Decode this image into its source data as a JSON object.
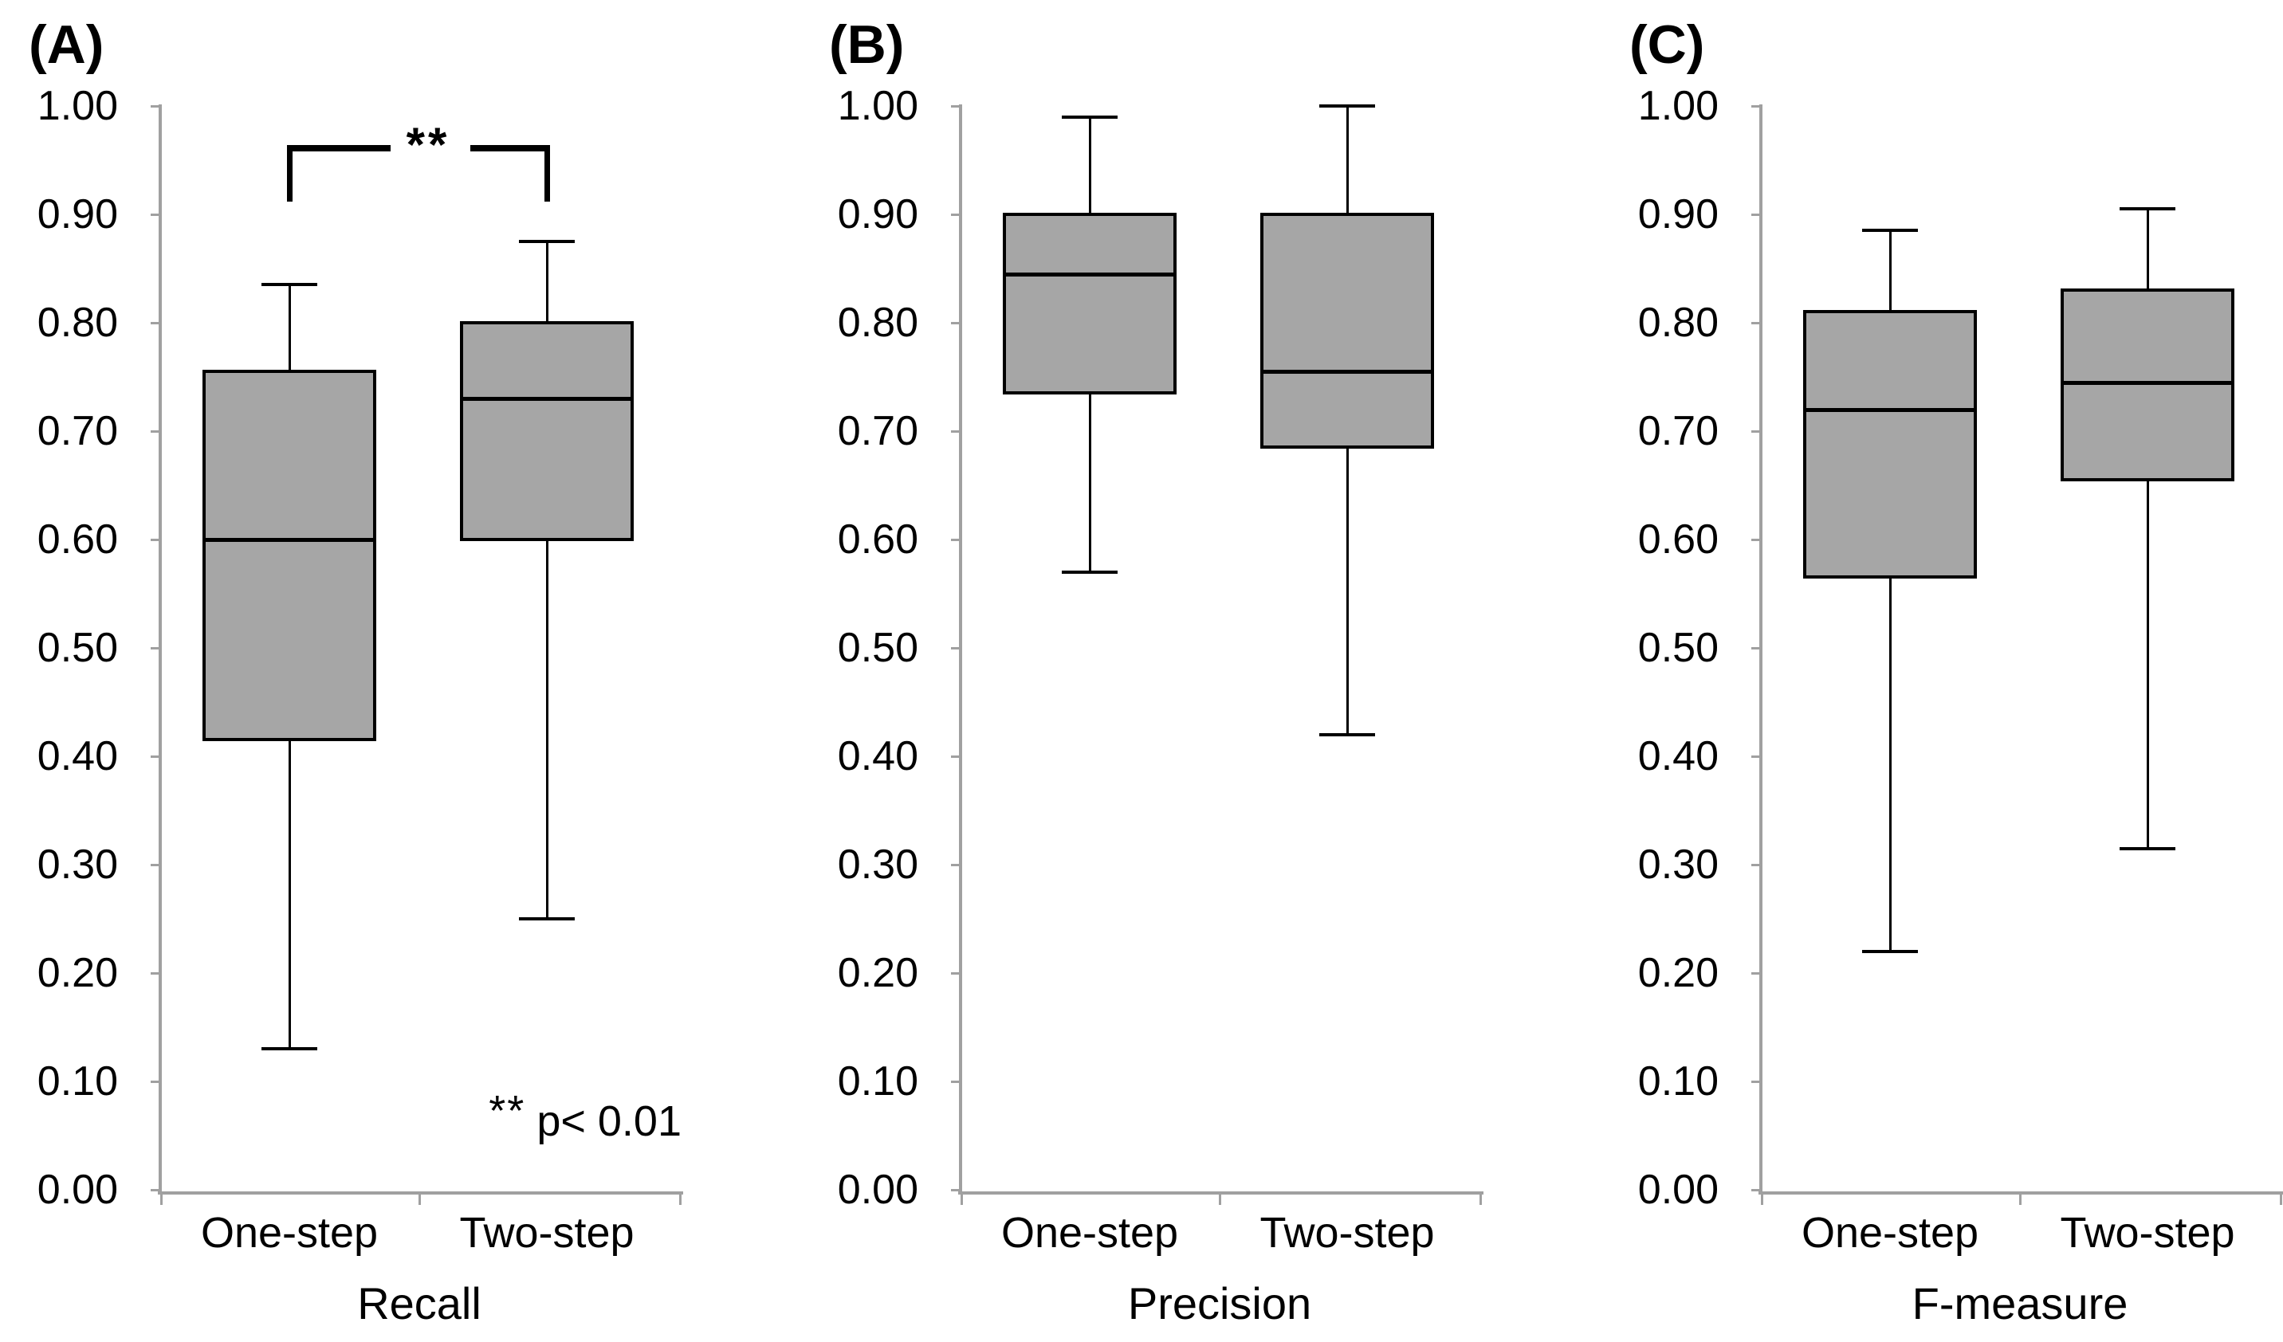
{
  "figure": {
    "kind": "three-panel box plot figure",
    "background": "#ffffff"
  },
  "chart_data": {
    "type": "boxplot",
    "layout_hint": "three side-by-side panels, shared y scale 0.00-1.00, gridlines off, no legend",
    "y_axis": {
      "min": 0.0,
      "max": 1.0,
      "tick_step": 0.1,
      "tick_labels": [
        "1.00",
        "0.90",
        "0.80",
        "0.70",
        "0.60",
        "0.50",
        "0.40",
        "0.30",
        "0.20",
        "0.10",
        "0.00"
      ]
    },
    "panels": [
      {
        "label": "(A)",
        "title": "Recall",
        "categories": [
          "One-step",
          "Two-step"
        ],
        "series": [
          {
            "category": "One-step",
            "whisker_low": 0.13,
            "q1": 0.415,
            "median": 0.6,
            "q3": 0.755,
            "whisker_high": 0.835
          },
          {
            "category": "Two-step",
            "whisker_low": 0.25,
            "q1": 0.6,
            "median": 0.73,
            "q3": 0.8,
            "whisker_high": 0.875
          }
        ],
        "significance": {
          "compared": [
            "One-step",
            "Two-step"
          ],
          "stars": "**",
          "note_stars": "**",
          "note_text": "p< 0.01",
          "bar_value": 0.961,
          "drop_value": 0.912
        }
      },
      {
        "label": "(B)",
        "title": "Precision",
        "categories": [
          "One-step",
          "Two-step"
        ],
        "series": [
          {
            "category": "One-step",
            "whisker_low": 0.57,
            "q1": 0.735,
            "median": 0.845,
            "q3": 0.9,
            "whisker_high": 0.99
          },
          {
            "category": "Two-step",
            "whisker_low": 0.42,
            "q1": 0.685,
            "median": 0.755,
            "q3": 0.9,
            "whisker_high": 1.0
          }
        ],
        "significance": null
      },
      {
        "label": "(C)",
        "title": "F-measure",
        "categories": [
          "One-step",
          "Two-step"
        ],
        "series": [
          {
            "category": "One-step",
            "whisker_low": 0.22,
            "q1": 0.565,
            "median": 0.72,
            "q3": 0.81,
            "whisker_high": 0.885
          },
          {
            "category": "Two-step",
            "whisker_low": 0.315,
            "q1": 0.655,
            "median": 0.745,
            "q3": 0.83,
            "whisker_high": 0.905
          }
        ],
        "significance": null
      }
    ],
    "colors": {
      "background": "#ffffff",
      "box_fill": "#a6a6a6",
      "box_border": "#000000",
      "median": "#000000",
      "whisker": "#000000",
      "axis": "#a0a0a0",
      "text": "#000000"
    }
  }
}
